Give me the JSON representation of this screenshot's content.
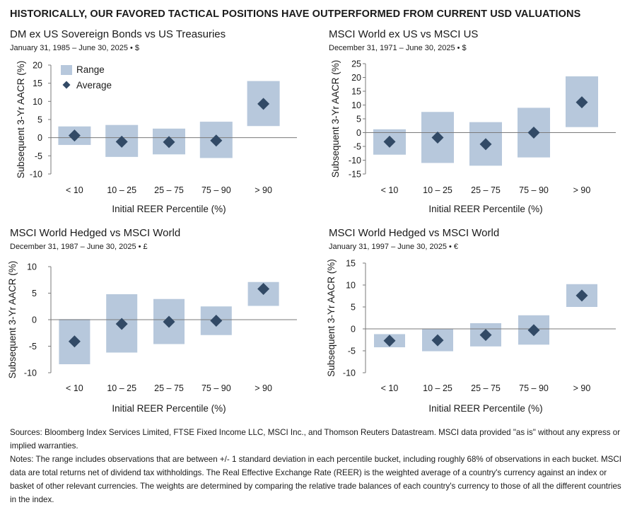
{
  "headline": "HISTORICALLY, OUR FAVORED TACTICAL POSITIONS HAVE OUTPERFORMED FROM CURRENT USD VALUATIONS",
  "colors": {
    "range": "#b7c8dc",
    "average": "#324a66",
    "zero_line": "#7a7a7a"
  },
  "legend": {
    "range_label": "Range",
    "average_label": "Average"
  },
  "chart_data": [
    {
      "type": "range-dot",
      "title": "DM ex US Sovereign Bonds vs US Treasuries",
      "subtitle": "January 31, 1985 – June 30, 2025 • $",
      "xlabel": "Initial REER Percentile (%)",
      "ylabel": "Subsequent 3-Yr AACR (%)",
      "ylim": [
        -10,
        20
      ],
      "yticks": [
        -10,
        -5,
        0,
        5,
        10,
        15,
        20
      ],
      "categories": [
        "< 10",
        "10 – 25",
        "25 – 75",
        "75 – 90",
        "> 90"
      ],
      "series": [
        {
          "name": "Range",
          "low": [
            -2.0,
            -5.3,
            -4.6,
            -5.6,
            3.2
          ],
          "high": [
            3.1,
            3.5,
            2.5,
            4.4,
            15.6
          ]
        },
        {
          "name": "Average",
          "values": [
            0.6,
            -1.1,
            -1.2,
            -0.8,
            9.3
          ]
        }
      ],
      "legend": "inside top-left"
    },
    {
      "type": "range-dot",
      "title": "MSCI World ex US vs MSCI US",
      "subtitle": "December 31, 1971 – June 30, 2025 • $",
      "xlabel": "Initial REER Percentile (%)",
      "ylabel": "Subsequent 3-Yr AACR (%)",
      "ylim": [
        -15,
        25
      ],
      "yticks": [
        -15,
        -10,
        -5,
        0,
        5,
        10,
        15,
        20,
        25
      ],
      "categories": [
        "< 10",
        "10 – 25",
        "25 – 75",
        "75 – 90",
        "> 90"
      ],
      "series": [
        {
          "name": "Range",
          "low": [
            -8.0,
            -11.0,
            -12.0,
            -9.0,
            2.0
          ],
          "high": [
            1.2,
            7.5,
            3.8,
            9.0,
            20.4
          ]
        },
        {
          "name": "Average",
          "values": [
            -3.3,
            -1.8,
            -4.2,
            0.0,
            11.0
          ]
        }
      ]
    },
    {
      "type": "range-dot",
      "title": "MSCI World Hedged vs MSCI World",
      "subtitle": "December 31, 1987 – June 30, 2025 • £",
      "xlabel": "Initial REER Percentile (%)",
      "ylabel": "Subsequent 3-Yr AACR (%)",
      "ylim": [
        -10,
        10
      ],
      "yticks": [
        -10,
        -5,
        0,
        5,
        10
      ],
      "categories": [
        "< 10",
        "10 – 25",
        "25 – 75",
        "75 – 90",
        "> 90"
      ],
      "series": [
        {
          "name": "Range",
          "low": [
            -8.4,
            -6.2,
            -4.6,
            -2.9,
            2.6
          ],
          "high": [
            0.1,
            4.8,
            3.9,
            2.5,
            7.1
          ]
        },
        {
          "name": "Average",
          "values": [
            -4.1,
            -0.8,
            -0.4,
            -0.2,
            5.8
          ]
        }
      ]
    },
    {
      "type": "range-dot",
      "title": "MSCI World Hedged vs MSCI World",
      "subtitle": "January 31, 1997 – June 30, 2025 • €",
      "xlabel": "Initial REER Percentile (%)",
      "ylabel": "Subsequent 3-Yr AACR (%)",
      "ylim": [
        -10,
        15
      ],
      "yticks": [
        -10,
        -5,
        0,
        5,
        10,
        15
      ],
      "categories": [
        "< 10",
        "10 – 25",
        "25 – 75",
        "75 – 90",
        "> 90"
      ],
      "series": [
        {
          "name": "Range",
          "low": [
            -4.2,
            -5.1,
            -4.0,
            -3.6,
            5.0
          ],
          "high": [
            -1.2,
            0.0,
            1.3,
            3.1,
            10.2
          ]
        },
        {
          "name": "Average",
          "values": [
            -2.7,
            -2.6,
            -1.4,
            -0.3,
            7.6
          ]
        }
      ]
    }
  ],
  "footnotes": {
    "sources": "Sources: Bloomberg Index Services Limited, FTSE Fixed Income LLC, MSCI Inc., and Thomson Reuters Datastream. MSCI data provided \"as is\" without any express or implied warranties.",
    "notes": "Notes: The range includes observations that are between +/- 1 standard deviation in each percentile bucket, including roughly 68% of observations in each bucket. MSCI data are total returns net of dividend tax withholdings. The Real Effective Exchange Rate (REER) is the weighted average of a country's currency against an index or basket of other relevant currencies. The weights are determined by comparing the relative trade balances of each country's currency to those of all the different countries in the index."
  }
}
